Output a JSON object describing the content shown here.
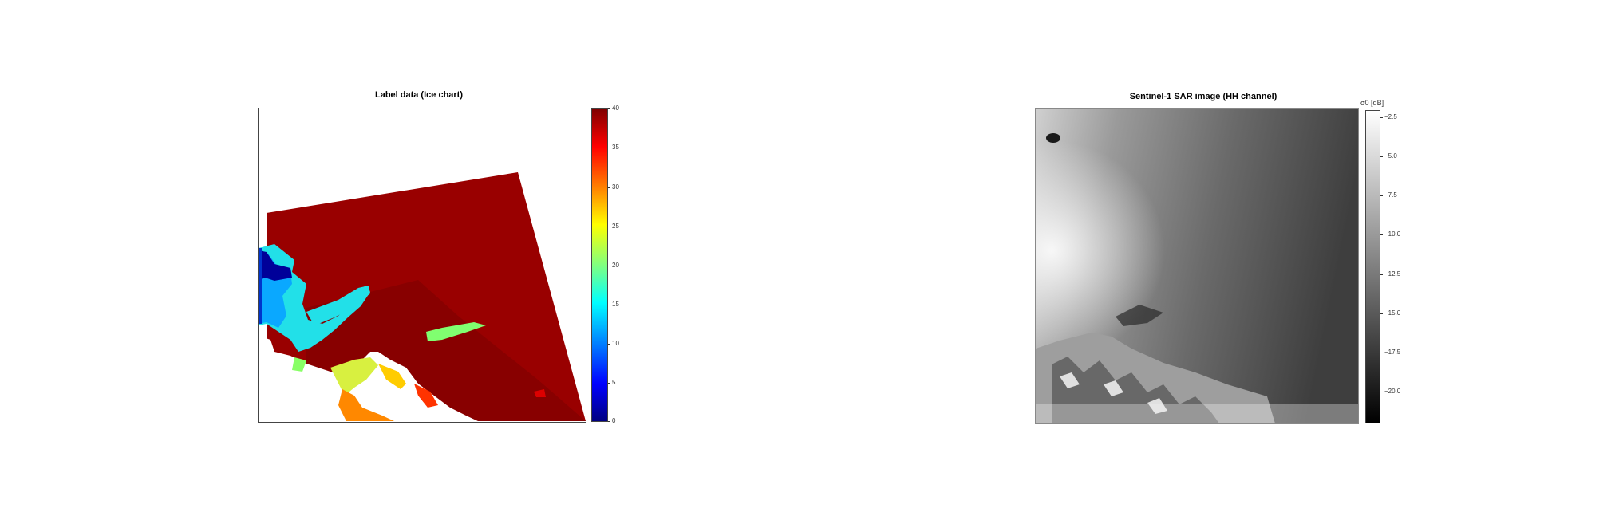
{
  "left_panel": {
    "title": "Label data (Ice chart)",
    "colorbar": {
      "ticks": [
        "40",
        "35",
        "30",
        "25",
        "20",
        "15",
        "10",
        "5",
        "0"
      ],
      "values": [
        40,
        35,
        30,
        25,
        20,
        15,
        10,
        5,
        0
      ],
      "range": [
        0,
        40
      ],
      "colormap": "jet"
    }
  },
  "right_panel": {
    "title": "Sentinel-1 SAR image (HH channel)",
    "colorbar": {
      "label": "σ0 [dB]",
      "ticks": [
        "−2.5",
        "−5.0",
        "−7.5",
        "−10.0",
        "−12.5",
        "−15.0",
        "−17.5",
        "−20.0"
      ],
      "values": [
        -2.5,
        -5.0,
        -7.5,
        -10.0,
        -12.5,
        -15.0,
        -17.5,
        -20.0
      ],
      "range": [
        -22,
        -1.5
      ],
      "colormap": "gray"
    }
  },
  "colors": {
    "dark_red": "#990000",
    "darker_red": "#8b0000",
    "cyan": "#22ddee",
    "blue": "#00a0ff",
    "navy": "#000099"
  }
}
